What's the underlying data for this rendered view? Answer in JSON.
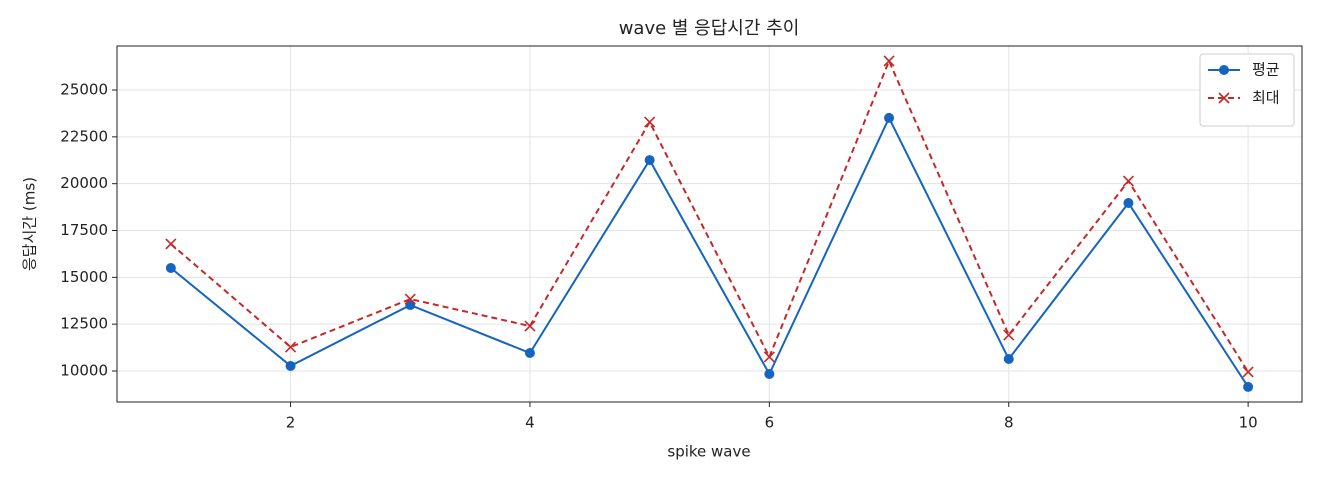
{
  "chart_data": {
    "type": "line",
    "title": "wave 별 응답시간 추이",
    "x_label": "spike wave",
    "y_label": "응답시간 (ms)",
    "x": [
      1,
      2,
      3,
      4,
      5,
      6,
      7,
      8,
      9,
      10
    ],
    "series": [
      {
        "name": "평균",
        "color": "#1565c0",
        "marker": "o",
        "linestyle": "solid",
        "values": [
          15500,
          10270,
          13520,
          10960,
          21260,
          9840,
          23510,
          10640,
          18970,
          9150
        ]
      },
      {
        "name": "최대",
        "color": "#c62828",
        "marker": "x",
        "linestyle": "dashed",
        "values": [
          16780,
          11280,
          13840,
          12400,
          23290,
          10750,
          26550,
          11920,
          20140,
          9950
        ]
      }
    ],
    "xlim": [
      0.55,
      10.45
    ],
    "xticks": [
      2,
      4,
      6,
      8,
      10
    ],
    "ylim": [
      8345,
      27350
    ],
    "yticks": [
      10000,
      12500,
      15000,
      17500,
      20000,
      22500,
      25000
    ],
    "grid": true,
    "legend": "upper right"
  }
}
